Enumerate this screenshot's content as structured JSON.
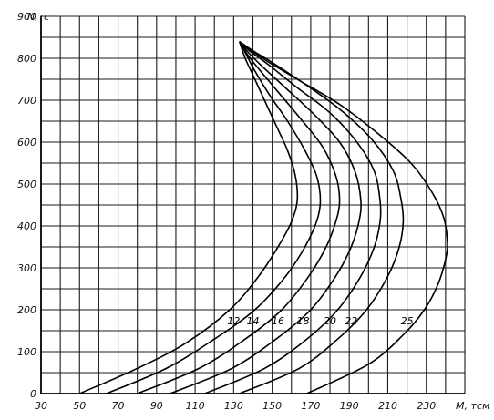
{
  "chart_data": {
    "type": "line",
    "title": "",
    "xlabel": "M, тсм",
    "ylabel": "N,тс",
    "xlim": [
      30,
      250
    ],
    "ylim": [
      0,
      900
    ],
    "x_ticks": [
      "30",
      "50",
      "70",
      "90",
      "110",
      "130",
      "150",
      "170",
      "190",
      "210",
      "230"
    ],
    "y_ticks": [
      "0",
      "100",
      "200",
      "300",
      "400",
      "500",
      "600",
      "700",
      "800",
      "900"
    ],
    "grid": true,
    "series": [
      {
        "name": "12",
        "label_at": [
          130,
          165
        ],
        "points": [
          [
            50,
            0
          ],
          [
            80,
            60
          ],
          [
            105,
            120
          ],
          [
            128,
            200
          ],
          [
            143,
            280
          ],
          [
            153,
            350
          ],
          [
            160,
            410
          ],
          [
            163,
            460
          ],
          [
            162,
            520
          ],
          [
            158,
            580
          ],
          [
            152,
            640
          ],
          [
            146,
            700
          ],
          [
            140,
            760
          ],
          [
            136,
            800
          ],
          [
            133,
            840
          ]
        ]
      },
      {
        "name": "14",
        "label_at": [
          140,
          165
        ],
        "points": [
          [
            64,
            0
          ],
          [
            95,
            60
          ],
          [
            120,
            130
          ],
          [
            141,
            200
          ],
          [
            157,
            280
          ],
          [
            167,
            350
          ],
          [
            173,
            410
          ],
          [
            175,
            460
          ],
          [
            173,
            520
          ],
          [
            167,
            580
          ],
          [
            158,
            650
          ],
          [
            149,
            710
          ],
          [
            141,
            770
          ],
          [
            137,
            805
          ],
          [
            133,
            840
          ]
        ]
      },
      {
        "name": "16",
        "label_at": [
          153,
          165
        ],
        "points": [
          [
            80,
            0
          ],
          [
            112,
            60
          ],
          [
            136,
            130
          ],
          [
            155,
            200
          ],
          [
            169,
            280
          ],
          [
            178,
            350
          ],
          [
            183,
            410
          ],
          [
            185,
            460
          ],
          [
            183,
            520
          ],
          [
            176,
            590
          ],
          [
            164,
            660
          ],
          [
            153,
            720
          ],
          [
            143,
            775
          ],
          [
            137,
            810
          ],
          [
            133,
            840
          ]
        ]
      },
      {
        "name": "18",
        "label_at": [
          166,
          165
        ],
        "points": [
          [
            97,
            0
          ],
          [
            129,
            60
          ],
          [
            152,
            130
          ],
          [
            170,
            200
          ],
          [
            183,
            280
          ],
          [
            191,
            350
          ],
          [
            195,
            410
          ],
          [
            196,
            460
          ],
          [
            193,
            530
          ],
          [
            185,
            600
          ],
          [
            172,
            665
          ],
          [
            158,
            725
          ],
          [
            145,
            780
          ],
          [
            138,
            812
          ],
          [
            133,
            840
          ]
        ]
      },
      {
        "name": "20",
        "label_at": [
          180,
          165
        ],
        "points": [
          [
            115,
            0
          ],
          [
            146,
            60
          ],
          [
            168,
            130
          ],
          [
            184,
            200
          ],
          [
            196,
            280
          ],
          [
            203,
            350
          ],
          [
            206,
            410
          ],
          [
            206,
            460
          ],
          [
            203,
            530
          ],
          [
            194,
            600
          ],
          [
            180,
            670
          ],
          [
            163,
            730
          ],
          [
            148,
            785
          ],
          [
            139,
            815
          ],
          [
            133,
            840
          ]
        ]
      },
      {
        "name": "22",
        "label_at": [
          191,
          165
        ],
        "points": [
          [
            133,
            0
          ],
          [
            164,
            60
          ],
          [
            184,
            130
          ],
          [
            199,
            200
          ],
          [
            210,
            280
          ],
          [
            216,
            350
          ],
          [
            218,
            410
          ],
          [
            217,
            460
          ],
          [
            213,
            530
          ],
          [
            202,
            605
          ],
          [
            186,
            675
          ],
          [
            168,
            735
          ],
          [
            150,
            790
          ],
          [
            140,
            818
          ],
          [
            133,
            840
          ]
        ]
      },
      {
        "name": "25",
        "label_at": [
          220,
          165
        ],
        "points": [
          [
            168,
            0
          ],
          [
            200,
            70
          ],
          [
            218,
            140
          ],
          [
            229,
            200
          ],
          [
            236,
            260
          ],
          [
            240,
            320
          ],
          [
            241,
            360
          ],
          [
            239,
            420
          ],
          [
            233,
            480
          ],
          [
            222,
            550
          ],
          [
            205,
            620
          ],
          [
            185,
            690
          ],
          [
            163,
            750
          ],
          [
            145,
            800
          ],
          [
            133,
            840
          ]
        ]
      }
    ]
  }
}
